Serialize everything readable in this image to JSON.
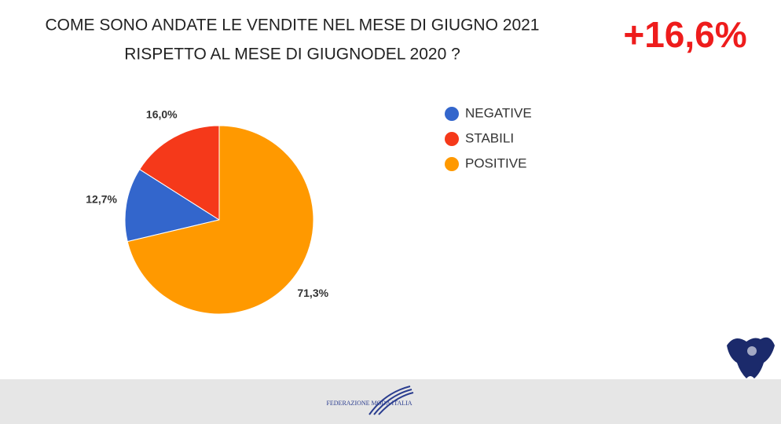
{
  "chart_data": {
    "type": "pie",
    "title": "COME SONO ANDATE LE VENDITE NEL MESE DI GIUGNO 2021",
    "subtitle": "RISPETTO AL MESE DI GIUGNODEL 2020 ?",
    "annotation": "+16,6%",
    "categories": [
      "NEGATIVE",
      "STABILI",
      "POSITIVE"
    ],
    "values": [
      12.7,
      16.0,
      71.3
    ],
    "value_labels": [
      "12,7%",
      "16,0%",
      "71,3%"
    ],
    "colors": [
      "#3366cc",
      "#f5391a",
      "#ff9900"
    ],
    "legend": "right"
  },
  "footer": {
    "logo_text": "FEDERAZIONE MODA ITALIA"
  }
}
